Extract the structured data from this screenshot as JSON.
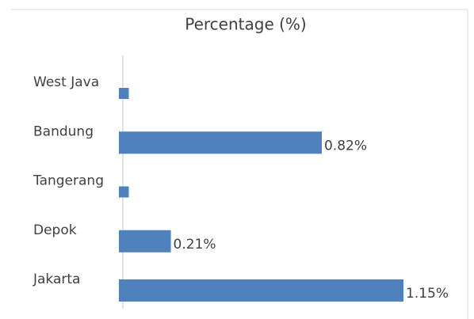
{
  "chart_data": {
    "type": "bar",
    "orientation": "horizontal",
    "title": "Percentage (%)",
    "categories": [
      "West Java",
      "Bandung",
      "Tangerang",
      "Depok",
      "Jakarta"
    ],
    "values": [
      0.04,
      0.82,
      0.04,
      0.21,
      1.15
    ],
    "value_labels": [
      null,
      "0.82%",
      null,
      "0.21%",
      "1.15%"
    ],
    "color": "#4f81bd"
  }
}
